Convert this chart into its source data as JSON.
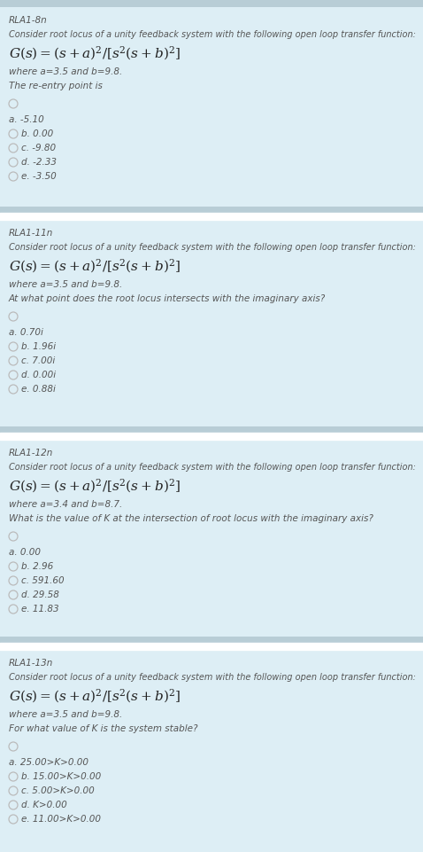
{
  "outer_bg": "#b8cdd6",
  "section_bg": "#ddeef5",
  "divider_color": "#ffffff",
  "text_color": "#555555",
  "sections": [
    {
      "id": "RLA1-8n",
      "question_italic": "Consider root locus of a unity feedback system with the following open loop transfer function:",
      "formula": "$G(s) = (s+a)^{2}/[s^{2}(s+b)^{2}]$",
      "params": "where a=3.5 and b=9.8.",
      "question2": "The re-entry point is",
      "options": [
        {
          "label": "a.",
          "text": "-5.10",
          "selected": true
        },
        {
          "label": "b.",
          "text": "0.00",
          "selected": false
        },
        {
          "label": "c.",
          "text": "-9.80",
          "selected": false
        },
        {
          "label": "d.",
          "text": "-2.33",
          "selected": false
        },
        {
          "label": "e.",
          "text": "-3.50",
          "selected": false
        }
      ]
    },
    {
      "id": "RLA1-11n",
      "question_italic": "Consider root locus of a unity feedback system with the following open loop transfer function:",
      "formula": "$G(s) = (s+a)^{2}/[s^{2}(s+b)^{2}]$",
      "params": "where a=3.5 and b=9.8.",
      "question2": "At what point does the root locus intersects with the imaginary axis?",
      "options": [
        {
          "label": "a.",
          "text": "0.70i",
          "selected": true
        },
        {
          "label": "b.",
          "text": "1.96i",
          "selected": false
        },
        {
          "label": "c.",
          "text": "7.00i",
          "selected": false
        },
        {
          "label": "d.",
          "text": "0.00i",
          "selected": false
        },
        {
          "label": "e.",
          "text": "0.88i",
          "selected": false
        }
      ]
    },
    {
      "id": "RLA1-12n",
      "question_italic": "Consider root locus of a unity feedback system with the following open loop transfer function:",
      "formula": "$G(s) = (s+a)^{2}/[s^{2}(s+b)^{2}]$",
      "params": "where a=3.4 and b=8.7.",
      "question2": "What is the value of K at the intersection of root locus with the imaginary axis?",
      "options": [
        {
          "label": "a.",
          "text": "0.00",
          "selected": true
        },
        {
          "label": "b.",
          "text": "2.96",
          "selected": false
        },
        {
          "label": "c.",
          "text": "591.60",
          "selected": false
        },
        {
          "label": "d.",
          "text": "29.58",
          "selected": false
        },
        {
          "label": "e.",
          "text": "11.83",
          "selected": false
        }
      ]
    },
    {
      "id": "RLA1-13n",
      "question_italic": "Consider root locus of a unity feedback system with the following open loop transfer function:",
      "formula": "$G(s) = (s+a)^{2}/[s^{2}(s+b)^{2}]$",
      "params": "where a=3.5 and b=9.8.",
      "question2": "For what value of K is the system stable?",
      "options": [
        {
          "label": "a.",
          "text": "25.00>K>0.00",
          "selected": true
        },
        {
          "label": "b.",
          "text": "15.00>K>0.00",
          "selected": false
        },
        {
          "label": "c.",
          "text": "5.00>K>0.00",
          "selected": false
        },
        {
          "label": "d.",
          "text": "K>0.00",
          "selected": false
        },
        {
          "label": "e.",
          "text": "11.00>K>0.00",
          "selected": false
        }
      ]
    }
  ],
  "section_tops": [
    0,
    240,
    488,
    725
  ],
  "section_bots": [
    233,
    481,
    718,
    961
  ],
  "fig_w": 4.78,
  "fig_h": 9.61,
  "dpi": 100
}
